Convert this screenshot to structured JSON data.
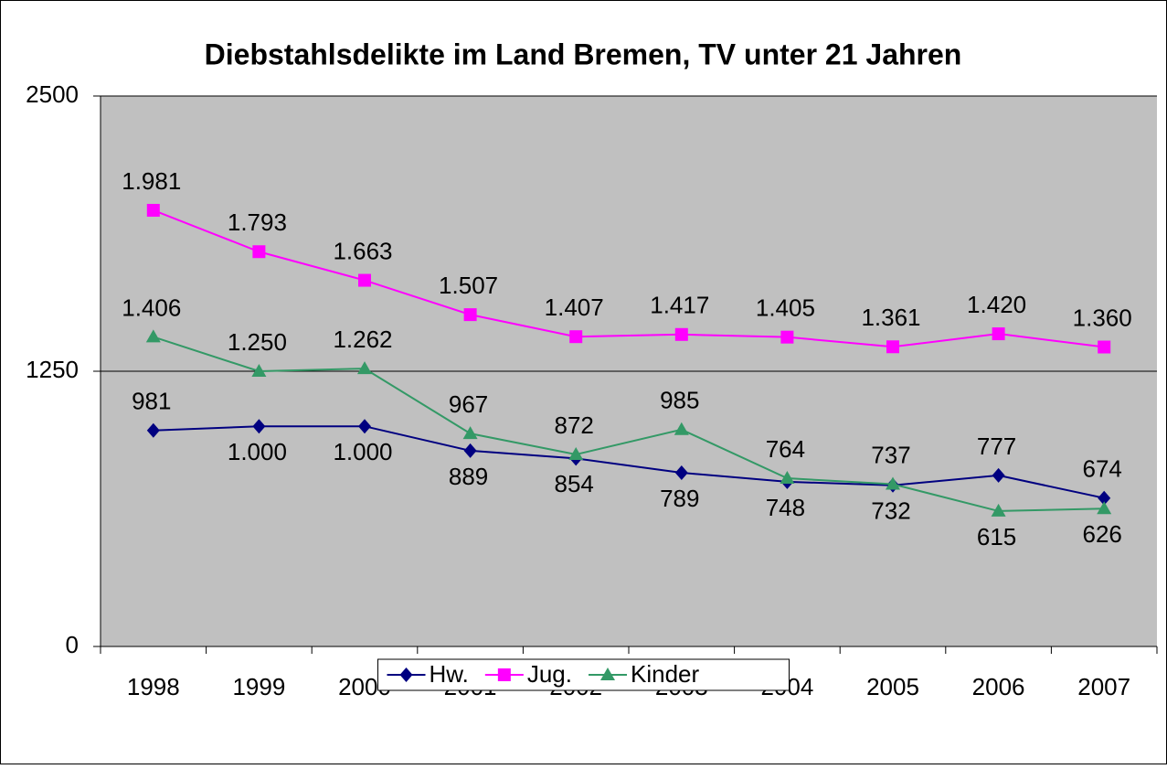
{
  "chart_data": {
    "type": "line",
    "title": "Diebstahlsdelikte im Land Bremen, TV unter 21 Jahren",
    "categories": [
      "1998",
      "1999",
      "2000",
      "2001",
      "2002",
      "2003",
      "2004",
      "2005",
      "2006",
      "2007"
    ],
    "series": [
      {
        "name": "Hw.",
        "color": "#000080",
        "marker": "diamond",
        "values": [
          981,
          1000,
          1000,
          889,
          854,
          789,
          748,
          732,
          777,
          674
        ],
        "value_labels": [
          "981",
          "1.000",
          "1.000",
          "889",
          "854",
          "789",
          "748",
          "732",
          "777",
          "674"
        ]
      },
      {
        "name": "Jug.",
        "color": "#ff00ff",
        "marker": "square",
        "values": [
          1981,
          1793,
          1663,
          1507,
          1407,
          1417,
          1405,
          1361,
          1420,
          1360
        ],
        "value_labels": [
          "1.981",
          "1.793",
          "1.663",
          "1.507",
          "1.407",
          "1.417",
          "1.405",
          "1.361",
          "1.420",
          "1.360"
        ]
      },
      {
        "name": "Kinder",
        "color": "#339966",
        "marker": "triangle",
        "values": [
          1406,
          1250,
          1262,
          967,
          872,
          985,
          764,
          737,
          615,
          626
        ],
        "value_labels": [
          "1.406",
          "1.250",
          "1.262",
          "967",
          "872",
          "985",
          "764",
          "737",
          "615",
          "626"
        ]
      }
    ],
    "ylim": [
      0,
      2500
    ],
    "yticks": [
      0,
      1250,
      2500
    ],
    "grid": true,
    "legend": "bottom"
  }
}
